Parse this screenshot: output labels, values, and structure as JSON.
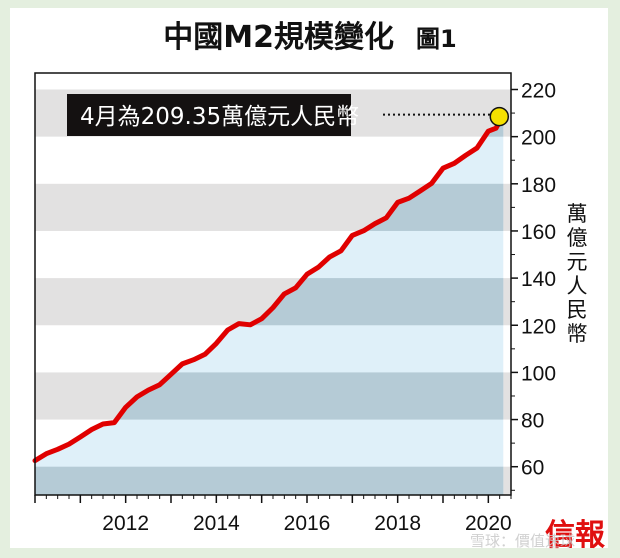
{
  "title": "中國M2規模變化",
  "figure_label": "圖1",
  "logo": "信報",
  "watermark": "雪球：價值速球",
  "chart_data": {
    "type": "area",
    "title": "中國M2規模變化",
    "ylabel": "萬億元人民幣",
    "xlabel": "",
    "xlim": [
      2010.0,
      2020.5
    ],
    "ylim": [
      48,
      227
    ],
    "x_ticks": [
      2012,
      2014,
      2016,
      2018,
      2020
    ],
    "y_ticks": [
      60,
      80,
      100,
      120,
      140,
      160,
      180,
      200,
      220
    ],
    "annotation": "4月為209.35萬億元人民幣",
    "grid_bands": "alternating gray bands every 20",
    "colors": {
      "line": "#e00000",
      "fill": "#d4ebf7",
      "band": "#e2e1e1",
      "marker": "#f5e000"
    },
    "x": [
      2010.0,
      2010.25,
      2010.5,
      2010.75,
      2011.0,
      2011.25,
      2011.5,
      2011.75,
      2012.0,
      2012.25,
      2012.5,
      2012.75,
      2013.0,
      2013.25,
      2013.5,
      2013.75,
      2014.0,
      2014.25,
      2014.5,
      2014.75,
      2015.0,
      2015.25,
      2015.5,
      2015.75,
      2016.0,
      2016.25,
      2016.5,
      2016.75,
      2017.0,
      2017.25,
      2017.5,
      2017.75,
      2018.0,
      2018.25,
      2018.5,
      2018.75,
      2019.0,
      2019.25,
      2019.5,
      2019.75,
      2020.0,
      2020.17,
      2020.33
    ],
    "values": [
      62.6,
      65.5,
      67.4,
      69.6,
      72.6,
      75.8,
      78.1,
      78.7,
      85.2,
      89.6,
      92.5,
      94.8,
      99.2,
      103.6,
      105.4,
      107.7,
      112.3,
      118.0,
      120.7,
      120.2,
      122.8,
      127.5,
      133.3,
      135.9,
      141.6,
      144.6,
      149.0,
      151.6,
      158.1,
      160.1,
      163.1,
      165.6,
      172.1,
      173.9,
      177.0,
      180.2,
      186.6,
      188.7,
      192.1,
      195.2,
      202.3,
      203.6,
      209.35
    ]
  }
}
